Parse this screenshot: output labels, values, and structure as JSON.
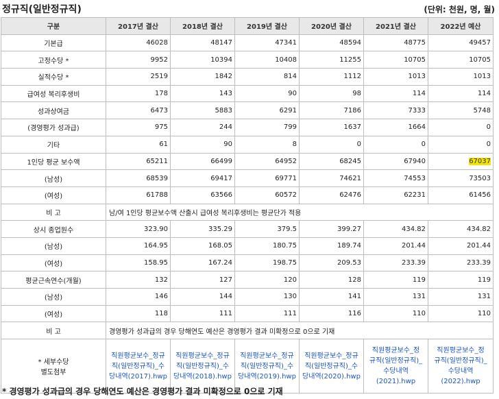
{
  "title": "정규직(일반정규직)",
  "unit": "(단위: 천원, 명, 월)",
  "header": [
    "구분",
    "2017년 결산",
    "2018년 결산",
    "2019년 결산",
    "2020년 결산",
    "2021년 결산",
    "2022년 예산"
  ],
  "rows": [
    {
      "label": "기본급",
      "values": [
        "46028",
        "48147",
        "47341",
        "48594",
        "48775",
        "49457"
      ]
    },
    {
      "label": "고정수당 *",
      "values": [
        "9952",
        "10394",
        "10408",
        "11255",
        "10705",
        "10705"
      ]
    },
    {
      "label": "실적수당 *",
      "values": [
        "2519",
        "1842",
        "814",
        "1112",
        "1013",
        "1013"
      ]
    },
    {
      "label": "급여성 복리후생비",
      "values": [
        "178",
        "143",
        "90",
        "98",
        "114",
        "114"
      ]
    },
    {
      "label": "성과상여금",
      "values": [
        "6473",
        "5883",
        "6291",
        "7186",
        "7333",
        "5748"
      ]
    },
    {
      "label": "(경영평가 성과급)",
      "values": [
        "975",
        "244",
        "799",
        "1637",
        "1664",
        "0"
      ]
    },
    {
      "label": "기타",
      "values": [
        "61",
        "90",
        "8",
        "0",
        "0",
        "0"
      ]
    },
    {
      "label": "1인당 평균 보수액",
      "values": [
        "65211",
        "66499",
        "64952",
        "68245",
        "67940",
        "67037"
      ],
      "highlight_last": true
    },
    {
      "label": "(남성)",
      "values": [
        "68539",
        "69417",
        "69771",
        "74621",
        "74553",
        "73503"
      ]
    },
    {
      "label": "(여성)",
      "values": [
        "61788",
        "63566",
        "60572",
        "62476",
        "62231",
        "61456"
      ]
    }
  ],
  "note1": {
    "label": "비 고",
    "text": "남/여 1인당 평균보수액 산출시 급여성 복리후생비는 평균단가 적용"
  },
  "rows2": [
    {
      "label": "상시 종업원수",
      "values": [
        "323.90",
        "335.29",
        "379.5",
        "399.27",
        "434.82",
        "434.82"
      ]
    },
    {
      "label": "(남성)",
      "values": [
        "164.95",
        "168.05",
        "180.75",
        "189.74",
        "201.44",
        "201.44"
      ]
    },
    {
      "label": "(여성)",
      "values": [
        "158.95",
        "167.24",
        "198.75",
        "209.53",
        "233.39",
        "233.39"
      ]
    },
    {
      "label": "평균근속연수(개월)",
      "values": [
        "132",
        "127",
        "120",
        "128",
        "119",
        "119"
      ]
    },
    {
      "label": "(남성)",
      "values": [
        "146",
        "144",
        "130",
        "141",
        "131",
        "131"
      ]
    },
    {
      "label": "(여성)",
      "values": [
        "118",
        "111",
        "111",
        "116",
        "110",
        "110"
      ]
    }
  ],
  "note2": {
    "label": "비 고",
    "text": "경영평가 성과급의 경우 당해연도 예산은 경영평가 결과 미확정으로 0으로 기재"
  },
  "files": {
    "label_line1": "* 세부수당",
    "label_line2": "별도첨부",
    "links": [
      {
        "line1": "직원평균보수_정규",
        "line2": "직(일반정규직)_수",
        "line3": "당내역(2017).hwp"
      },
      {
        "line1": "직원평균보수_정규",
        "line2": "직(일반정규직)_수",
        "line3": "당내역(2018).hwp"
      },
      {
        "line1": "직원평균보수_정규",
        "line2": "직(일반정규직)_수",
        "line3": "당내역(2019).hwp"
      },
      {
        "line1": "직원평균보수_정규",
        "line2": "직(일반정규직)_수",
        "line3": "당내역(2020).hwp"
      },
      {
        "line1": "직원평균보수_정",
        "line2": "규직(일반정규직)_",
        "line3": "수당내역",
        "line4": "(2021).hwp"
      },
      {
        "line1": "직원평균보수_정",
        "line2": "규직(일반정규직)_",
        "line3": "수당내역",
        "line4": "(2022).hwp"
      }
    ]
  },
  "footnote": "* 경영평가 성과급의 경우 당해연도 예산은 경영평가 결과 미확정으로 0으로 기재"
}
